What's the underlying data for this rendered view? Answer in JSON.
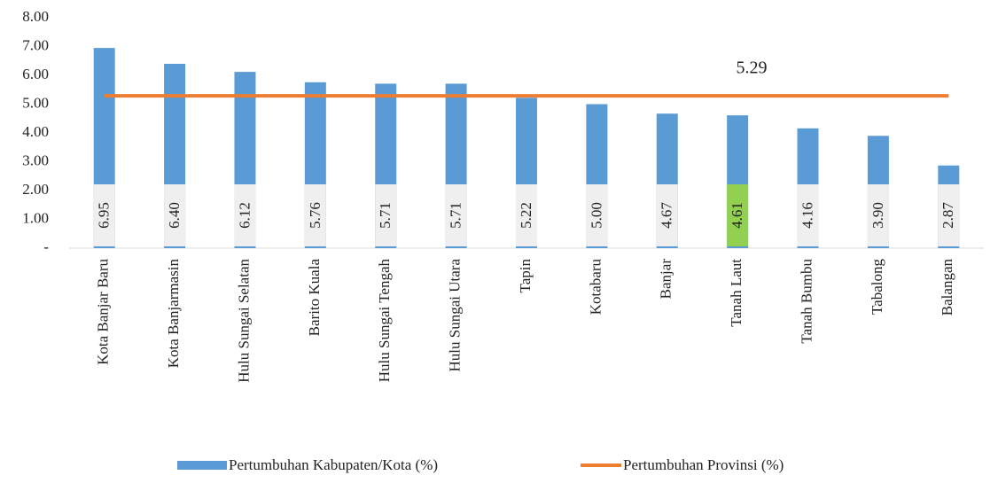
{
  "chart_data": {
    "type": "bar",
    "categories": [
      "Kota Banjar Baru",
      "Kota Banjarmasin",
      "Hulu Sungai Selatan",
      "Barito Kuala",
      "Hulu Sungai Tengah",
      "Hulu Sungai Utara",
      "Tapin",
      "Kotabaru",
      "Banjar",
      "Tanah Laut",
      "Tanah Bumbu",
      "Tabalong",
      "Balangan"
    ],
    "series": [
      {
        "name": "Pertumbuhan Kabupaten/Kota (%)",
        "type": "bar",
        "color": "#5b9bd5",
        "values": [
          6.95,
          6.4,
          6.12,
          5.76,
          5.71,
          5.71,
          5.22,
          5.0,
          4.67,
          4.61,
          4.16,
          3.9,
          2.87
        ],
        "value_labels": [
          "6.95",
          "6.40",
          "6.12",
          "5.76",
          "5.71",
          "5.71",
          "5.22",
          "5.00",
          "4.67",
          "4.61",
          "4.16",
          "3.90",
          "2.87"
        ],
        "value_label_colors": [
          "#efefef",
          "#efefef",
          "#efefef",
          "#efefef",
          "#efefef",
          "#efefef",
          "#efefef",
          "#efefef",
          "#efefef",
          "#92d050",
          "#efefef",
          "#efefef",
          "#efefef"
        ]
      },
      {
        "name": "Pertumbuhan Provinsi (%)",
        "type": "line",
        "color": "#ed7d31",
        "values": [
          5.29,
          5.29,
          5.29,
          5.29,
          5.29,
          5.29,
          5.29,
          5.29,
          5.29,
          5.29,
          5.29,
          5.29,
          5.29
        ]
      }
    ],
    "annotation": "5.29",
    "ylim": [
      0,
      8
    ],
    "yticks": [
      {
        "value": 0,
        "label": "-"
      },
      {
        "value": 1,
        "label": "1.00"
      },
      {
        "value": 2,
        "label": "2.00"
      },
      {
        "value": 3,
        "label": "3.00"
      },
      {
        "value": 4,
        "label": "4.00"
      },
      {
        "value": 5,
        "label": "5.00"
      },
      {
        "value": 6,
        "label": "6.00"
      },
      {
        "value": 7,
        "label": "7.00"
      },
      {
        "value": 8,
        "label": "8.00"
      }
    ],
    "grid": false,
    "legend": "bottom"
  }
}
